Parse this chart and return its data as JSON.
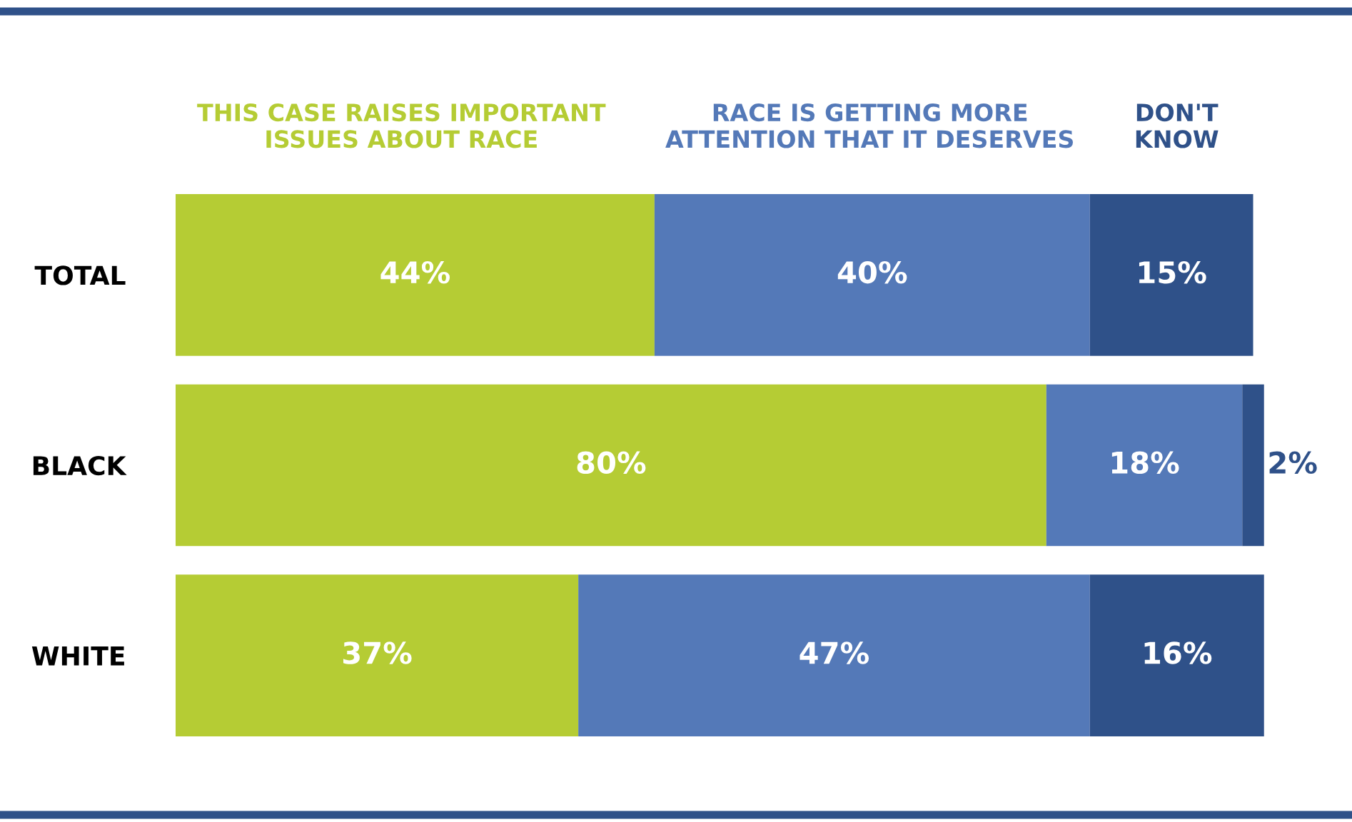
{
  "chart_data": {
    "type": "bar",
    "orientation": "horizontal",
    "stacked": true,
    "legend": "top",
    "categories": [
      "TOTAL",
      "BLACK",
      "WHITE"
    ],
    "series": [
      {
        "name": "THIS CASE RAISES IMPORTANT\nISSUES ABOUT RACE",
        "color": "#b5cc34",
        "values": [
          44,
          80,
          37
        ],
        "value_labels": [
          "44%",
          "80%",
          "37%"
        ]
      },
      {
        "name": "RACE IS GETTING MORE\nATTENTION THAT IT DESERVES",
        "color": "#5479b8",
        "values": [
          40,
          18,
          47
        ],
        "value_labels": [
          "40%",
          "18%",
          "47%"
        ]
      },
      {
        "name": "DON'T\nKNOW",
        "color": "#2f5189",
        "values": [
          15,
          2,
          16
        ],
        "value_labels": [
          "15%",
          "2%",
          "16%"
        ]
      }
    ]
  }
}
